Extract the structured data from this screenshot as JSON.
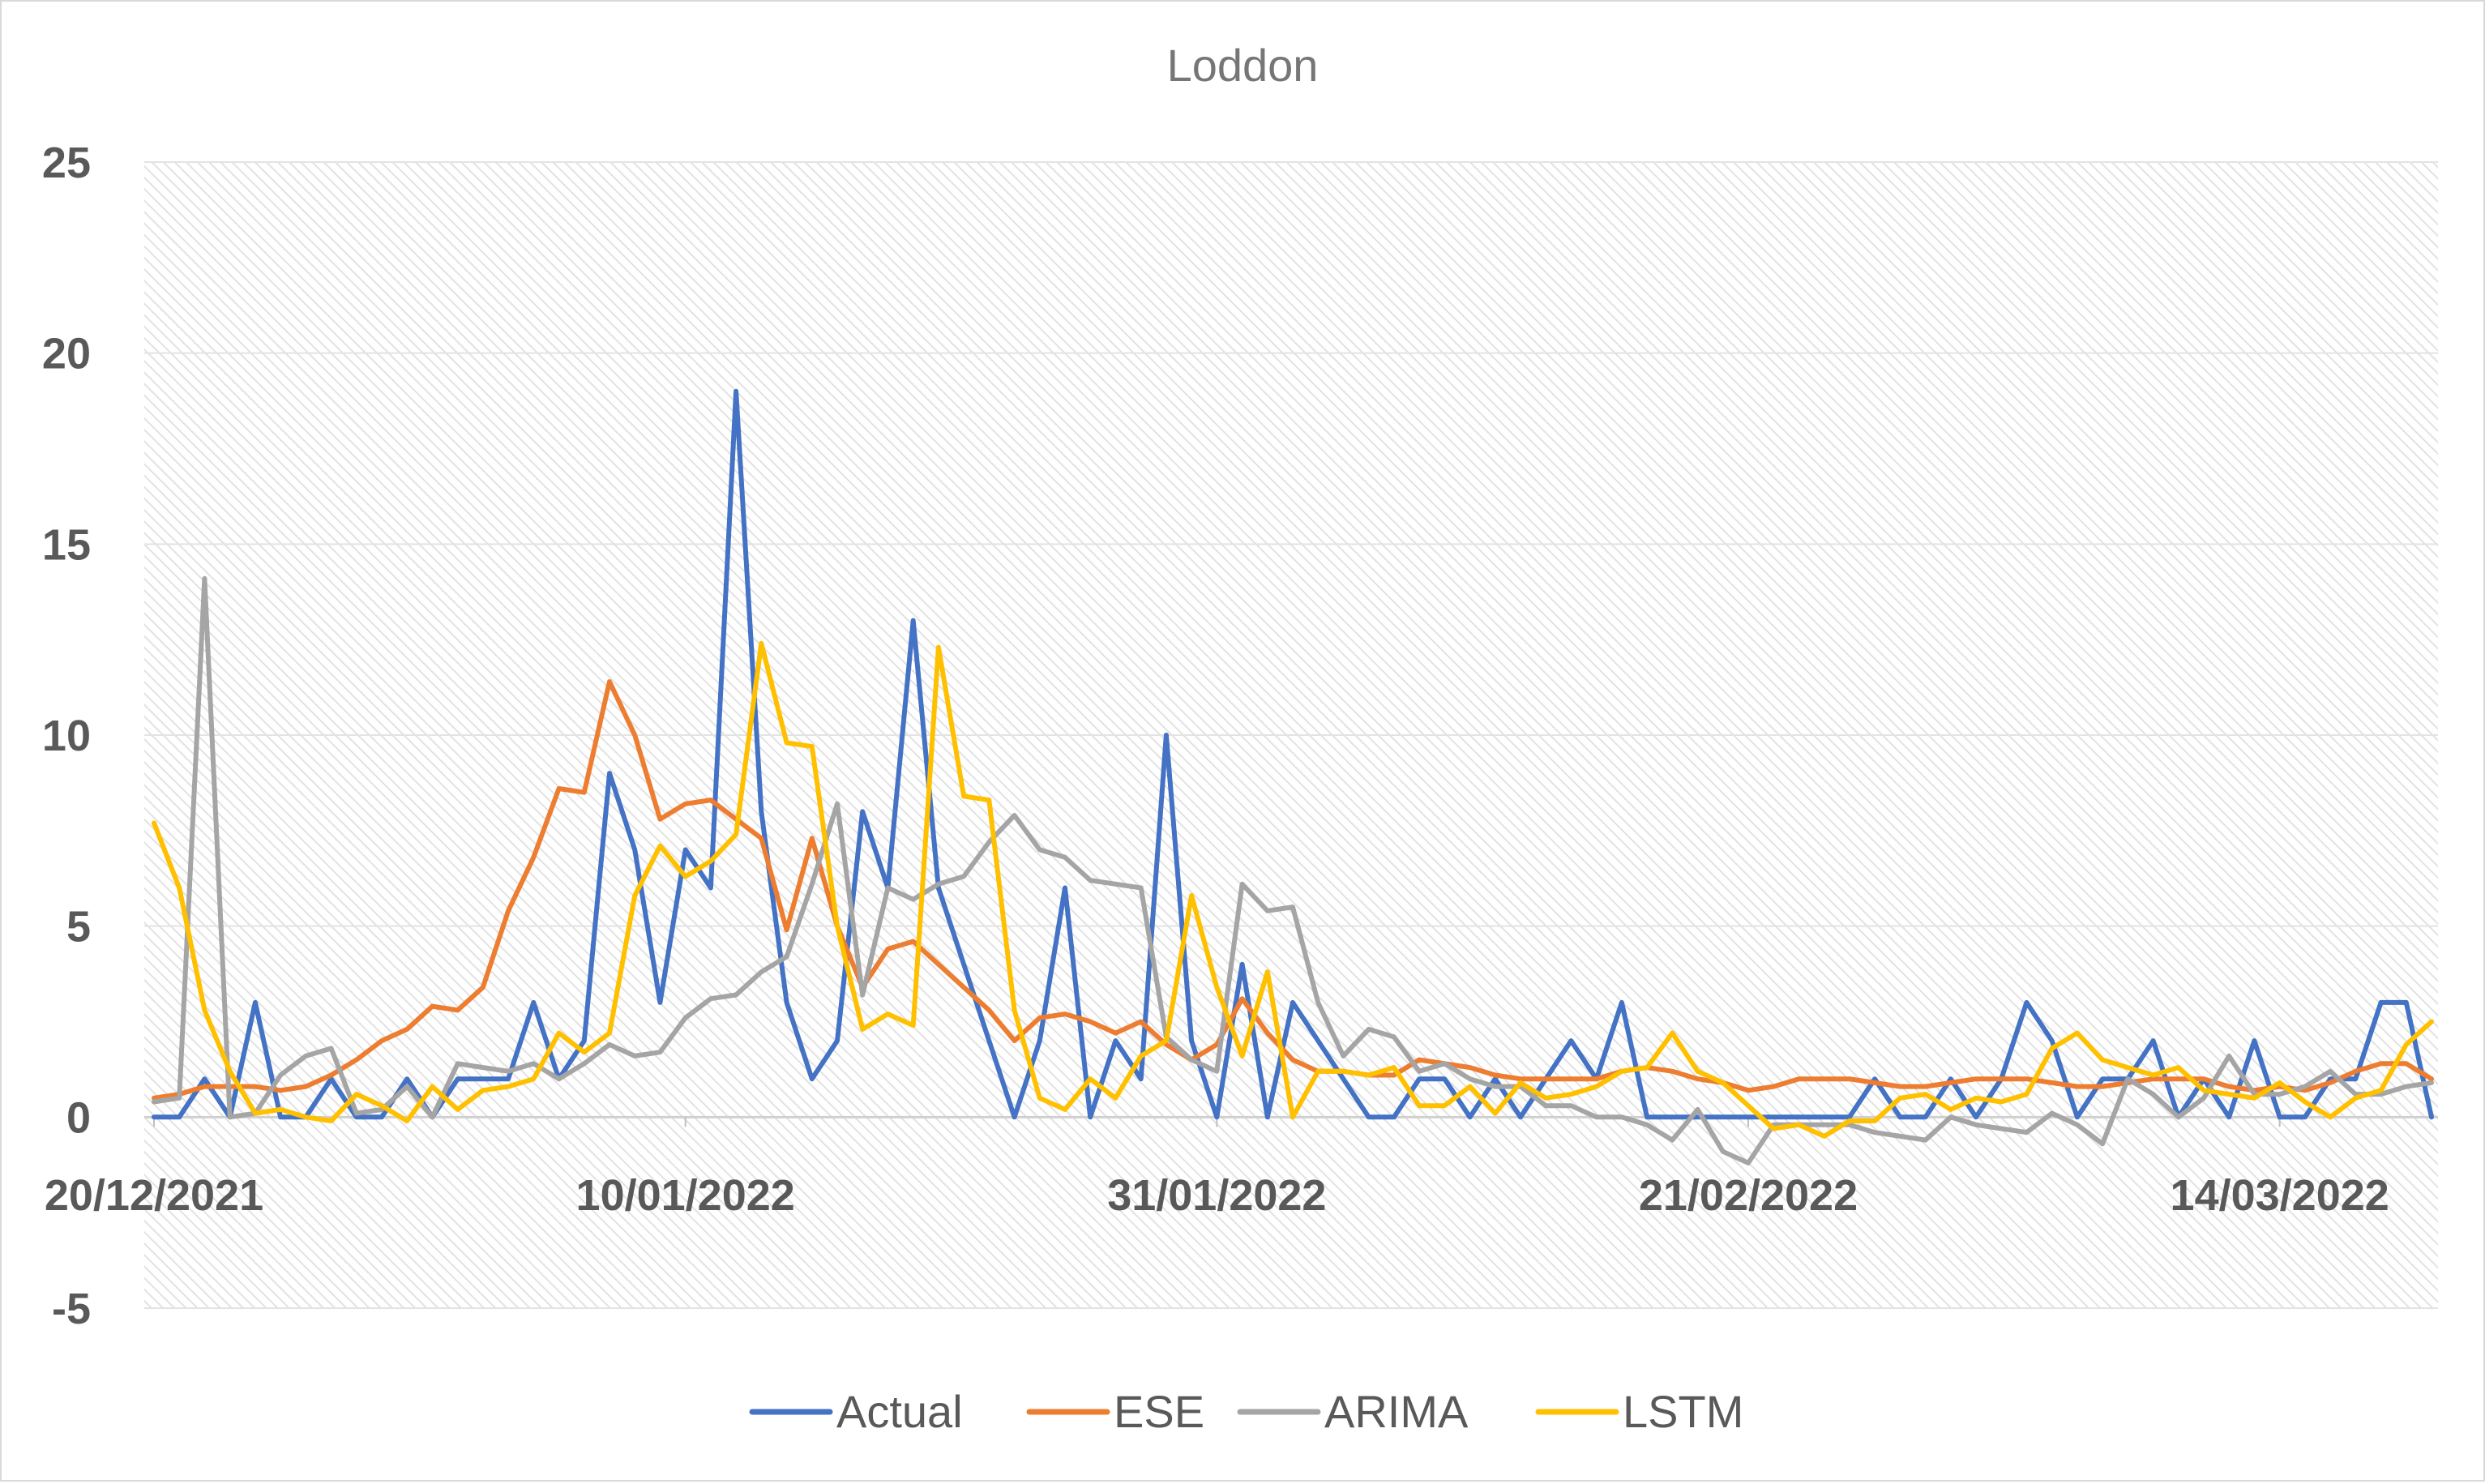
{
  "chart_data": {
    "type": "line",
    "title": "Loddon",
    "xlabel": "",
    "ylabel": "",
    "ylim": [
      -5,
      25
    ],
    "yticks": [
      -5,
      0,
      5,
      10,
      15,
      20,
      25
    ],
    "xticks": [
      {
        "day": 0,
        "label": "20/12/2021"
      },
      {
        "day": 21,
        "label": "10/01/2022"
      },
      {
        "day": 42,
        "label": "31/01/2022"
      },
      {
        "day": 63,
        "label": "21/02/2022"
      },
      {
        "day": 84,
        "label": "14/03/2022"
      }
    ],
    "x_start_date": "20/12/2021",
    "x_range_days": [
      0,
      90
    ],
    "grid": true,
    "plot_background": "diagonal hatch",
    "legend_position": "bottom",
    "series": [
      {
        "name": "Actual",
        "color": "#4472c4",
        "values": [
          0,
          0,
          1,
          0,
          3,
          0,
          0,
          1,
          0,
          0,
          1,
          0,
          1,
          1,
          1,
          3,
          1,
          2,
          9,
          7,
          3,
          7,
          6,
          19,
          8,
          3,
          1,
          2,
          8,
          6,
          13,
          6,
          4,
          2,
          0,
          2,
          6,
          0,
          2,
          1,
          10,
          2,
          0,
          4,
          0,
          3,
          2,
          1,
          0,
          0,
          1,
          1,
          0,
          1,
          0,
          1,
          2,
          1,
          3,
          0,
          0,
          0,
          0,
          0,
          0,
          0,
          0,
          0,
          1,
          0,
          0,
          1,
          0,
          1,
          3,
          2,
          0,
          1,
          1,
          2,
          0,
          1,
          0,
          2,
          0,
          0,
          1,
          1,
          3,
          3,
          0
        ]
      },
      {
        "name": "ESE",
        "color": "#ed7d31",
        "values": [
          0.5,
          0.6,
          0.8,
          0.8,
          0.8,
          0.7,
          0.8,
          1.1,
          1.5,
          2.0,
          2.3,
          2.9,
          2.8,
          3.4,
          5.4,
          6.8,
          8.6,
          8.5,
          11.4,
          10.0,
          7.8,
          8.2,
          8.3,
          7.8,
          7.3,
          4.9,
          7.3,
          5.0,
          3.4,
          4.4,
          4.6,
          4.0,
          3.4,
          2.8,
          2.0,
          2.6,
          2.7,
          2.5,
          2.2,
          2.5,
          1.9,
          1.5,
          1.9,
          3.1,
          2.2,
          1.5,
          1.2,
          1.2,
          1.1,
          1.1,
          1.5,
          1.4,
          1.3,
          1.1,
          1.0,
          1.0,
          1.0,
          1.0,
          1.2,
          1.3,
          1.2,
          1.0,
          0.9,
          0.7,
          0.8,
          1.0,
          1.0,
          1.0,
          0.9,
          0.8,
          0.8,
          0.9,
          1.0,
          1.0,
          1.0,
          0.9,
          0.8,
          0.8,
          0.9,
          1.0,
          1.0,
          1.0,
          0.8,
          0.7,
          0.8,
          0.7,
          0.9,
          1.2,
          1.4,
          1.4,
          1.0
        ]
      },
      {
        "name": "ARIMA",
        "color": "#a5a5a5",
        "values": [
          0.4,
          0.5,
          14.1,
          0.0,
          0.1,
          1.1,
          1.6,
          1.8,
          0.1,
          0.2,
          0.8,
          0.0,
          1.4,
          1.3,
          1.2,
          1.4,
          1.0,
          1.4,
          1.9,
          1.6,
          1.7,
          2.6,
          3.1,
          3.2,
          3.8,
          4.2,
          6.1,
          8.2,
          3.2,
          6.0,
          5.7,
          6.1,
          6.3,
          7.2,
          7.9,
          7.0,
          6.8,
          6.2,
          6.1,
          6.0,
          2.1,
          1.5,
          1.2,
          6.1,
          5.4,
          5.5,
          3.0,
          1.6,
          2.3,
          2.1,
          1.2,
          1.4,
          1.0,
          0.8,
          0.8,
          0.3,
          0.3,
          0.0,
          0.0,
          -0.2,
          -0.6,
          0.2,
          -0.9,
          -1.2,
          -0.2,
          -0.2,
          -0.2,
          -0.2,
          -0.4,
          -0.5,
          -0.6,
          0.0,
          -0.2,
          -0.3,
          -0.4,
          0.1,
          -0.2,
          -0.7,
          1.0,
          0.6,
          0.0,
          0.5,
          1.6,
          0.6,
          0.6,
          0.8,
          1.2,
          0.6,
          0.6,
          0.8,
          0.9
        ]
      },
      {
        "name": "LSTM",
        "color": "#ffc000",
        "values": [
          7.7,
          6.0,
          2.8,
          1.2,
          0.1,
          0.2,
          0.0,
          -0.1,
          0.6,
          0.3,
          -0.1,
          0.8,
          0.2,
          0.7,
          0.8,
          1.0,
          2.2,
          1.7,
          2.2,
          5.8,
          7.1,
          6.3,
          6.7,
          7.4,
          12.4,
          9.8,
          9.7,
          5.0,
          2.3,
          2.7,
          2.4,
          12.3,
          8.4,
          8.3,
          2.8,
          0.5,
          0.2,
          1.0,
          0.5,
          1.6,
          2.0,
          5.8,
          3.4,
          1.6,
          3.8,
          0.0,
          1.2,
          1.2,
          1.1,
          1.3,
          0.3,
          0.3,
          0.8,
          0.1,
          0.9,
          0.5,
          0.6,
          0.8,
          1.2,
          1.3,
          2.2,
          1.2,
          0.9,
          0.3,
          -0.3,
          -0.2,
          -0.5,
          -0.1,
          -0.1,
          0.5,
          0.6,
          0.2,
          0.5,
          0.4,
          0.6,
          1.8,
          2.2,
          1.5,
          1.3,
          1.1,
          1.3,
          0.7,
          0.6,
          0.5,
          0.9,
          0.4,
          0.0,
          0.5,
          0.7,
          1.9,
          2.5
        ]
      }
    ]
  }
}
